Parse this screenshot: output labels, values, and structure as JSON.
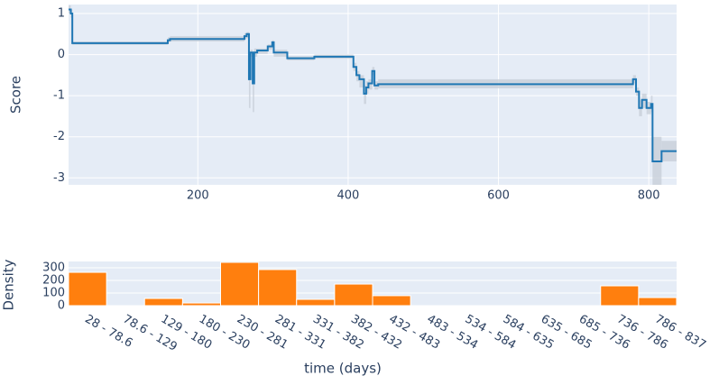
{
  "chart_data": [
    {
      "type": "line",
      "y_label": "Score",
      "line_shape": "hv",
      "grid": true,
      "background": "#e5ecf6",
      "xlim": [
        28,
        837
      ],
      "ylim": [
        -3.17,
        1.22
      ],
      "xticks": [
        200,
        400,
        600,
        800
      ],
      "yticks": [
        -3,
        -2,
        -1,
        0,
        1
      ],
      "x": [
        28,
        31,
        33,
        160,
        163,
        262,
        265,
        268,
        270,
        273,
        275,
        279,
        293,
        299,
        301,
        319,
        355,
        395,
        407,
        411,
        415,
        421,
        424,
        427,
        432,
        435,
        440,
        779,
        783,
        787,
        791,
        797,
        803,
        805,
        817,
        837
      ],
      "series": [
        {
          "color": "#1f77b4",
          "values": [
            1.1,
            1.0,
            0.28,
            0.35,
            0.38,
            0.45,
            0.5,
            -0.6,
            0.05,
            -0.7,
            0.05,
            0.1,
            0.2,
            0.3,
            0.05,
            -0.09,
            -0.05,
            -0.05,
            -0.3,
            -0.5,
            -0.6,
            -0.95,
            -0.8,
            -0.7,
            -0.4,
            -0.75,
            -0.72,
            -0.6,
            -0.9,
            -1.3,
            -1.1,
            -1.3,
            -1.2,
            -2.6,
            -2.35,
            -2.35
          ],
          "band_color": "#c8d0da",
          "upper": [
            1.2,
            1.1,
            0.32,
            0.42,
            0.45,
            0.52,
            0.55,
            -0.3,
            0.12,
            -0.4,
            0.15,
            0.15,
            0.25,
            0.35,
            0.12,
            -0.04,
            0.0,
            0.0,
            -0.2,
            -0.4,
            -0.5,
            -0.75,
            -0.65,
            -0.6,
            -0.3,
            -0.65,
            -0.6,
            -0.5,
            -0.8,
            -1.1,
            -0.95,
            -1.15,
            -1.0,
            -2.0,
            -2.1,
            -2.1
          ],
          "lower": [
            1.0,
            0.9,
            0.24,
            0.3,
            0.32,
            0.38,
            0.4,
            -1.3,
            -0.05,
            -1.4,
            -0.05,
            0.02,
            0.12,
            0.2,
            -0.05,
            -0.14,
            -0.1,
            -0.1,
            -0.4,
            -0.65,
            -0.8,
            -1.2,
            -0.95,
            -0.85,
            -0.5,
            -0.85,
            -0.82,
            -0.7,
            -1.0,
            -1.5,
            -1.3,
            -1.45,
            -1.4,
            -3.17,
            -2.6,
            -2.6
          ]
        }
      ]
    },
    {
      "type": "bar",
      "y_label": "Density",
      "x_label": "time (days)",
      "grid": true,
      "background": "#e5ecf6",
      "color": "#ff7f0e",
      "categories": [
        "28 - 78.6",
        "78.6 - 129",
        "129 - 180",
        "180 - 230",
        "230 - 281",
        "281 - 331",
        "331 - 382",
        "382 - 432",
        "432 - 483",
        "483 - 534",
        "534 - 584",
        "584 - 635",
        "635 - 685",
        "685 - 736",
        "736 - 786",
        "786 - 837"
      ],
      "values": [
        264,
        0,
        57,
        21,
        343,
        286,
        50,
        171,
        79,
        0,
        0,
        0,
        0,
        0,
        157,
        64
      ],
      "ylim": [
        0,
        350
      ],
      "yticks": [
        0,
        100,
        200,
        300
      ]
    }
  ]
}
